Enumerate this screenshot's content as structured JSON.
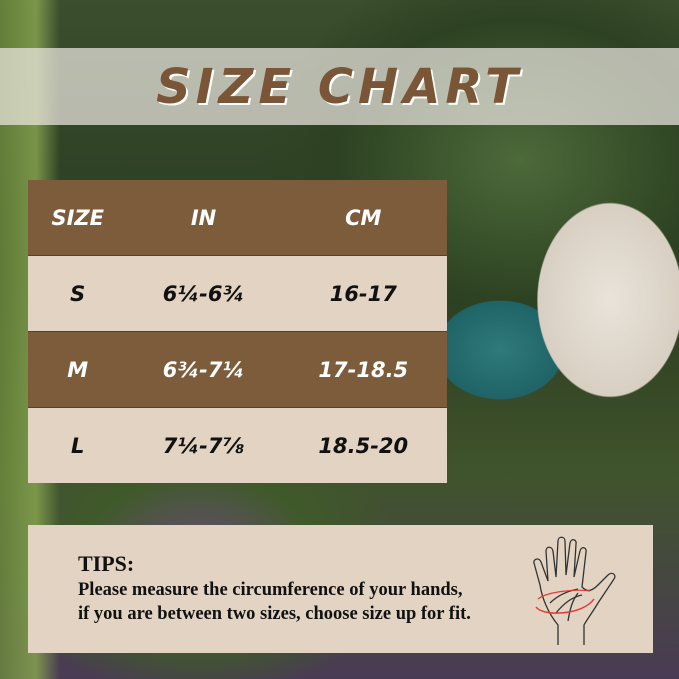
{
  "title": "SIZE CHART",
  "table": {
    "headers": [
      "SIZE",
      "IN",
      "CM"
    ],
    "rows": [
      [
        "S",
        "6¼-6¾",
        "16-17"
      ],
      [
        "M",
        "6¾-7¼",
        "17-18.5"
      ],
      [
        "L",
        "7¼-7⅞",
        "18.5-20"
      ]
    ]
  },
  "tips": {
    "heading": "TIPS:",
    "line1": "Please measure the circumference of your hands,",
    "line2": "if you are between two sizes, choose size up for fit.",
    "icon": "hand-measure-icon"
  },
  "colors": {
    "brown": "#7d5c3c",
    "beige": "#e3d3c2",
    "measure_arrow": "#e03a3a"
  }
}
